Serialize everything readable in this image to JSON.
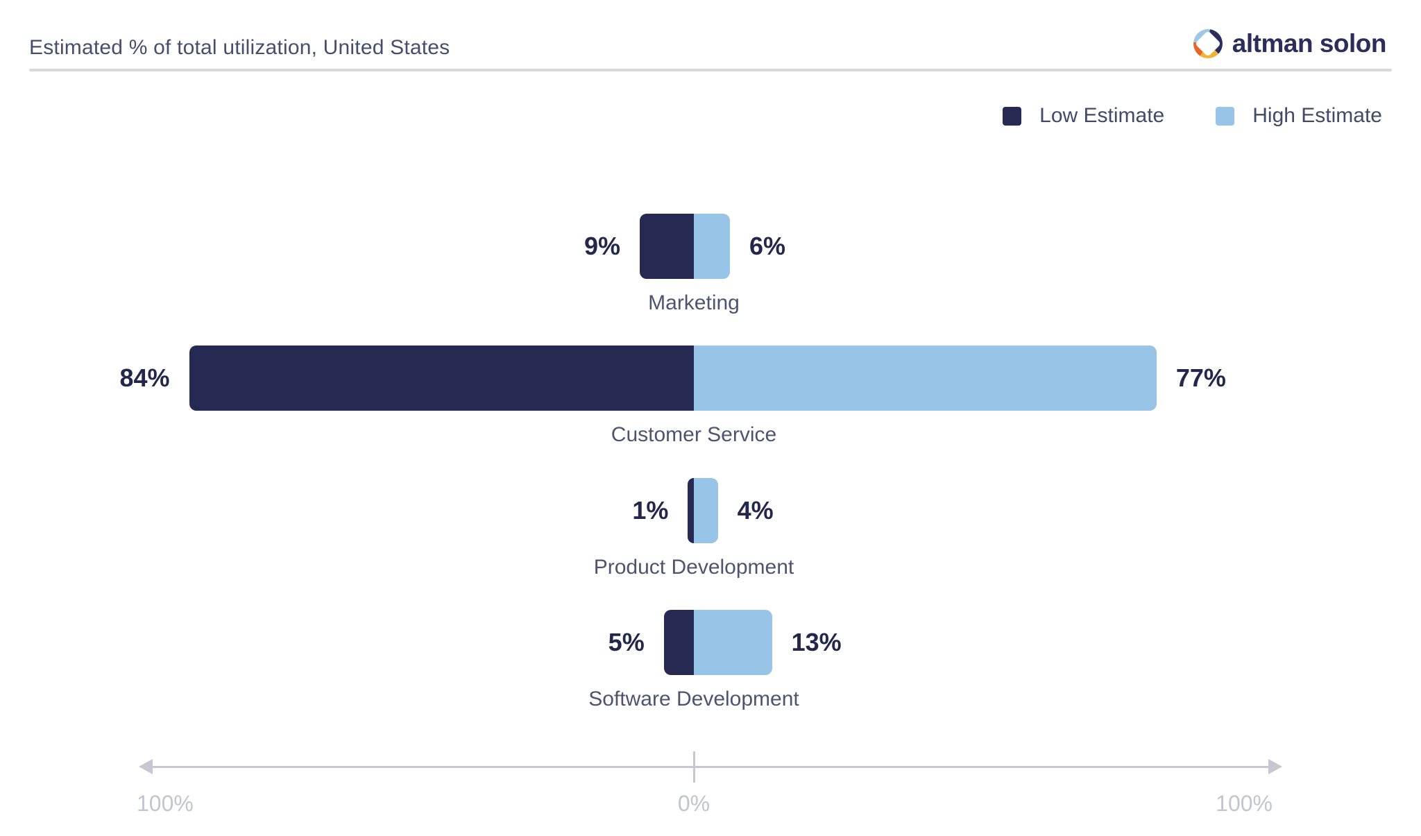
{
  "header": {
    "title": "Estimated % of total utilization, United States",
    "logo_text": "altman solon",
    "logo_colors": {
      "navy": "#2b2e5c",
      "blue": "#9dc6e8",
      "orange": "#e8652a",
      "amber": "#f2b232"
    }
  },
  "legend": [
    {
      "label": "Low Estimate",
      "color": "#262a52"
    },
    {
      "label": "High Estimate",
      "color": "#97c4e7"
    }
  ],
  "chart_data": {
    "type": "bar",
    "subtype": "diverging-horizontal",
    "title": "Estimated % of total utilization, United States",
    "categories": [
      "Marketing",
      "Customer Service",
      "Product Development",
      "Software Development"
    ],
    "series": [
      {
        "name": "Low Estimate",
        "side": "left",
        "color": "#262a52",
        "values": [
          9,
          84,
          1,
          5
        ]
      },
      {
        "name": "High Estimate",
        "side": "right",
        "color": "#97c4e7",
        "values": [
          6,
          77,
          4,
          13
        ]
      }
    ],
    "value_labels": {
      "low": [
        "9%",
        "84%",
        "1%",
        "5%"
      ],
      "high": [
        "6%",
        "77%",
        "4%",
        "13%"
      ]
    },
    "axis": {
      "left_label": "100%",
      "center_label": "0%",
      "right_label": "100%",
      "range": [
        -100,
        100
      ],
      "grid": false
    },
    "legend_position": "top-right"
  }
}
